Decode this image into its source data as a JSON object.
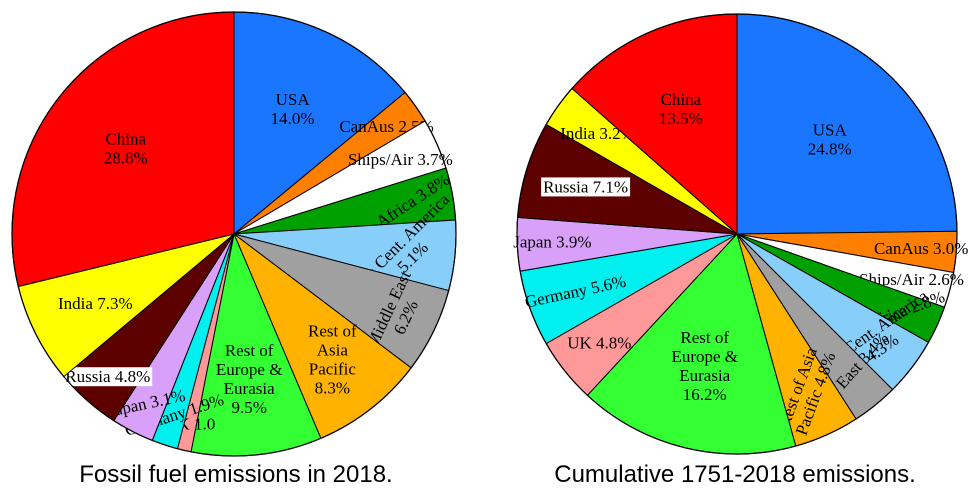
{
  "chart_data": [
    {
      "type": "pie",
      "caption": "Fossil fuel emissions in 2018.",
      "slices": [
        {
          "name": "USA",
          "value": 14.0,
          "label": "USA\n14.0%",
          "color": "#1a75ff"
        },
        {
          "name": "CanAus",
          "value": 2.5,
          "label": "CanAus 2.5%",
          "color": "#ff7f00"
        },
        {
          "name": "Ships/Air",
          "value": 3.7,
          "label": "Ships/Air 3.7%",
          "color": "#ffffff"
        },
        {
          "name": "Africa",
          "value": 3.8,
          "label": "Africa 3.8%",
          "color": "#00a000"
        },
        {
          "name": "S. & Cent. America",
          "value": 5.1,
          "label": "S. & Cent. America\n5.1%",
          "color": "#87cefa"
        },
        {
          "name": "Middle East",
          "value": 6.2,
          "label": "Middle East\n6.2%",
          "color": "#a0a0a0"
        },
        {
          "name": "Rest of Asia Pacific",
          "value": 8.3,
          "label": "Rest of\nAsia\nPacific\n8.3%",
          "color": "#ffb300"
        },
        {
          "name": "Rest of Europe & Eurasia",
          "value": 9.5,
          "label": "Rest of\nEurope &\nEurasia\n9.5%",
          "color": "#33ff33"
        },
        {
          "name": "UK",
          "value": 1.0,
          "label": "UK 1.0",
          "color": "#ff9999"
        },
        {
          "name": "Germany",
          "value": 1.9,
          "label": "Germany 1.9%",
          "color": "#00f0f0"
        },
        {
          "name": "Japan",
          "value": 3.1,
          "label": "Japan 3.1%",
          "color": "#d8a0f8"
        },
        {
          "name": "Russia",
          "value": 4.8,
          "label": "Russia 4.8%",
          "color": "#5c0000"
        },
        {
          "name": "India",
          "value": 7.3,
          "label": "India 7.3%",
          "color": "#ffff00"
        },
        {
          "name": "China",
          "value": 28.8,
          "label": "China\n28.8%",
          "color": "#ff0000"
        }
      ]
    },
    {
      "type": "pie",
      "caption": "Cumulative 1751-2018 emissions.",
      "slices": [
        {
          "name": "USA",
          "value": 24.8,
          "label": "USA\n24.8%",
          "color": "#1a75ff"
        },
        {
          "name": "CanAus",
          "value": 3.0,
          "label": "CanAus 3.0%",
          "color": "#ff7f00"
        },
        {
          "name": "Ships/Air",
          "value": 2.6,
          "label": "Ships/Air 2.6%",
          "color": "#ffffff"
        },
        {
          "name": "Africa",
          "value": 2.8,
          "label": "Africa 2.8%",
          "color": "#00a000"
        },
        {
          "name": "S. & Cent. America",
          "value": 4.3,
          "label": "S. & Cent. America\n4.3%",
          "color": "#87cefa"
        },
        {
          "name": "Mid. East",
          "value": 3.4,
          "label": "Mid. East 3.4%",
          "color": "#a0a0a0"
        },
        {
          "name": "Rest of Asia Pacific",
          "value": 4.8,
          "label": "Rest of Asia\nPacific 4.8%",
          "color": "#ffb300"
        },
        {
          "name": "Rest of Europe & Eurasia",
          "value": 16.2,
          "label": "Rest of\nEurope &\nEurasia\n16.2%",
          "color": "#33ff33"
        },
        {
          "name": "UK",
          "value": 4.8,
          "label": "UK 4.8%",
          "color": "#ff9999"
        },
        {
          "name": "Germany",
          "value": 5.6,
          "label": "Germany 5.6%",
          "color": "#00f0f0"
        },
        {
          "name": "Japan",
          "value": 3.9,
          "label": "Japan 3.9%",
          "color": "#d8a0f8"
        },
        {
          "name": "Russia",
          "value": 7.1,
          "label": "Russia 7.1%",
          "color": "#5c0000"
        },
        {
          "name": "India",
          "value": 3.2,
          "label": "India 3.2%",
          "color": "#ffff00"
        },
        {
          "name": "China",
          "value": 13.5,
          "label": "China\n13.5%",
          "color": "#ff0000"
        }
      ]
    }
  ]
}
